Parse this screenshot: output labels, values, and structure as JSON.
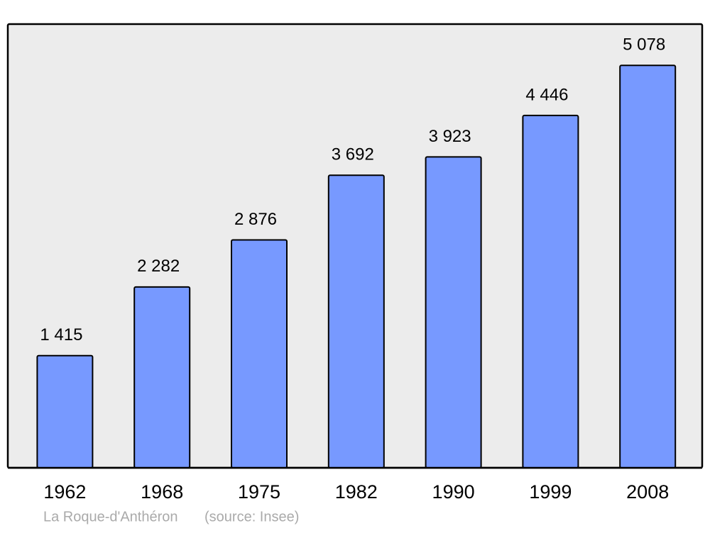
{
  "chart_data": {
    "type": "bar",
    "caption": "La Roque-d'Anthéron",
    "source": "(source: Insee)",
    "categories": [
      "1962",
      "1968",
      "1975",
      "1982",
      "1990",
      "1999",
      "2008"
    ],
    "values": [
      1415,
      2282,
      2876,
      3692,
      3923,
      4446,
      5078
    ],
    "value_labels": [
      "1 415",
      "2 282",
      "2 876",
      "3 692",
      "3 923",
      "4 446",
      "5 078"
    ],
    "color": "#7799ff"
  }
}
